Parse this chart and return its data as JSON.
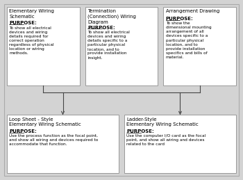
{
  "bg_color": "#d3d3d3",
  "box_bg": "#ffffff",
  "box_border": "#999999",
  "arrow_color": "#444444",
  "top_boxes": [
    {
      "title": "Elementary Wiring\nSchematic",
      "purpose_label": "PURPOSE:",
      "body": "To show all electrical\ndevices and wiring\ndetails required for\ncorrect operation\nregardless of physical\nlocation or wiring\nmethods."
    },
    {
      "title": "Termination\n(Connection) Wiring\nDiagram",
      "purpose_label": "PURPOSE:",
      "body": "To show all electrical\ndevices and wiring\ndetails specific to a\nparticular physical\nlocation, and to\nprovide installation\ninsight."
    },
    {
      "title": "Arrangement Drawing",
      "purpose_label": "PURPOSE:",
      "body": "To show the\ndimensional mounting\narrangement of all\ndevices specific to a\nparticular physical\nlocation, and to\nprovide installation\nspecifics and bills of\nmaterial."
    }
  ],
  "bottom_boxes": [
    {
      "title": "Loop Sheet - Style\nElementary Wiring Schematic",
      "purpose_label": "PURPOSE:",
      "body": "Use the process function as the focal point,\nand show all wiring and devices required to\naccommodate that function."
    },
    {
      "title": "Ladder-Style\nElementary Wiring Schematic",
      "purpose_label": "PURPOSE:",
      "body": "Use the computer I/O card as the focal\npoint, and show all wiring and devices\nrelated to the card"
    }
  ]
}
